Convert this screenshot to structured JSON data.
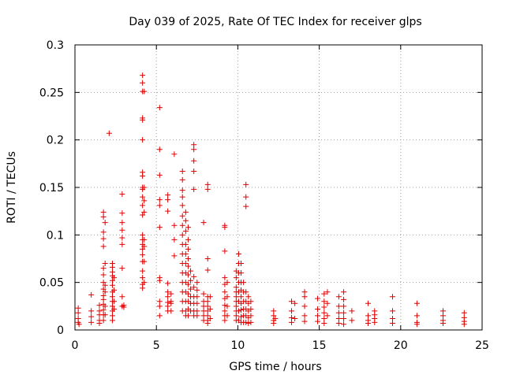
{
  "chart_data": {
    "type": "scatter",
    "title": "Day 039 of 2025, Rate Of TEC Index for receiver glps",
    "xlabel": "GPS time / hours",
    "ylabel": "ROTI / TECUs",
    "xlim": [
      0,
      25
    ],
    "ylim": [
      0,
      0.3
    ],
    "x_ticks": [
      0,
      5,
      10,
      15,
      20,
      25
    ],
    "x_tick_labels": [
      "0",
      "5",
      "10",
      "15",
      "20",
      "25"
    ],
    "y_ticks": [
      0,
      0.05,
      0.1,
      0.15,
      0.2,
      0.25,
      0.3
    ],
    "y_tick_labels": [
      "0",
      "0.05",
      "0.1",
      "0.15",
      "0.2",
      "0.25",
      "0.3"
    ],
    "grid": true,
    "marker": "+",
    "series_color": "#e00000",
    "points": [
      [
        0.2,
        0.023
      ],
      [
        0.2,
        0.018
      ],
      [
        0.2,
        0.012
      ],
      [
        0.2,
        0.008
      ],
      [
        0.25,
        0.006
      ],
      [
        1.0,
        0.037
      ],
      [
        1.0,
        0.02
      ],
      [
        1.0,
        0.014
      ],
      [
        1.0,
        0.008
      ],
      [
        1.5,
        0.026
      ],
      [
        1.5,
        0.02
      ],
      [
        1.5,
        0.016
      ],
      [
        1.5,
        0.01
      ],
      [
        1.5,
        0.007
      ],
      [
        1.75,
        0.124
      ],
      [
        1.75,
        0.119
      ],
      [
        1.75,
        0.103
      ],
      [
        1.75,
        0.096
      ],
      [
        1.75,
        0.088
      ],
      [
        1.75,
        0.065
      ],
      [
        1.75,
        0.058
      ],
      [
        1.75,
        0.05
      ],
      [
        1.75,
        0.043
      ],
      [
        1.75,
        0.036
      ],
      [
        1.75,
        0.032
      ],
      [
        1.75,
        0.027
      ],
      [
        1.75,
        0.021
      ],
      [
        1.75,
        0.016
      ],
      [
        1.75,
        0.01
      ],
      [
        1.85,
        0.113
      ],
      [
        1.85,
        0.07
      ],
      [
        1.85,
        0.047
      ],
      [
        1.85,
        0.04
      ],
      [
        1.85,
        0.025
      ],
      [
        1.85,
        0.016
      ],
      [
        2.1,
        0.207
      ],
      [
        2.3,
        0.07
      ],
      [
        2.3,
        0.066
      ],
      [
        2.3,
        0.061
      ],
      [
        2.3,
        0.057
      ],
      [
        2.3,
        0.052
      ],
      [
        2.3,
        0.047
      ],
      [
        2.3,
        0.04
      ],
      [
        2.3,
        0.035
      ],
      [
        2.3,
        0.03
      ],
      [
        2.3,
        0.025
      ],
      [
        2.3,
        0.02
      ],
      [
        2.3,
        0.015
      ],
      [
        2.3,
        0.01
      ],
      [
        2.4,
        0.055
      ],
      [
        2.4,
        0.042
      ],
      [
        2.4,
        0.03
      ],
      [
        2.4,
        0.022
      ],
      [
        2.9,
        0.143
      ],
      [
        2.9,
        0.123
      ],
      [
        2.9,
        0.113
      ],
      [
        2.9,
        0.105
      ],
      [
        2.9,
        0.097
      ],
      [
        2.9,
        0.09
      ],
      [
        2.9,
        0.065
      ],
      [
        2.9,
        0.035
      ],
      [
        2.9,
        0.025
      ],
      [
        3.0,
        0.026
      ],
      [
        3.0,
        0.024
      ],
      [
        4.15,
        0.268
      ],
      [
        4.15,
        0.26
      ],
      [
        4.15,
        0.251
      ],
      [
        4.15,
        0.223
      ],
      [
        4.15,
        0.221
      ],
      [
        4.15,
        0.2
      ],
      [
        4.15,
        0.166
      ],
      [
        4.15,
        0.162
      ],
      [
        4.15,
        0.15
      ],
      [
        4.15,
        0.148
      ],
      [
        4.15,
        0.14
      ],
      [
        4.15,
        0.131
      ],
      [
        4.15,
        0.121
      ],
      [
        4.15,
        0.1
      ],
      [
        4.15,
        0.095
      ],
      [
        4.15,
        0.09
      ],
      [
        4.15,
        0.085
      ],
      [
        4.15,
        0.079
      ],
      [
        4.15,
        0.072
      ],
      [
        4.15,
        0.062
      ],
      [
        4.15,
        0.055
      ],
      [
        4.15,
        0.048
      ],
      [
        4.15,
        0.044
      ],
      [
        4.25,
        0.251
      ],
      [
        4.25,
        0.15
      ],
      [
        4.25,
        0.136
      ],
      [
        4.25,
        0.124
      ],
      [
        4.25,
        0.095
      ],
      [
        4.25,
        0.088
      ],
      [
        4.25,
        0.072
      ],
      [
        4.25,
        0.05
      ],
      [
        5.2,
        0.234
      ],
      [
        5.2,
        0.19
      ],
      [
        5.2,
        0.163
      ],
      [
        5.2,
        0.137
      ],
      [
        5.2,
        0.131
      ],
      [
        5.2,
        0.108
      ],
      [
        5.2,
        0.055
      ],
      [
        5.2,
        0.052
      ],
      [
        5.2,
        0.03
      ],
      [
        5.2,
        0.025
      ],
      [
        5.2,
        0.015
      ],
      [
        5.7,
        0.142
      ],
      [
        5.7,
        0.137
      ],
      [
        5.7,
        0.125
      ],
      [
        5.7,
        0.049
      ],
      [
        5.7,
        0.04
      ],
      [
        5.7,
        0.035
      ],
      [
        5.7,
        0.029
      ],
      [
        5.7,
        0.025
      ],
      [
        5.7,
        0.02
      ],
      [
        5.9,
        0.038
      ],
      [
        5.9,
        0.03
      ],
      [
        5.9,
        0.028
      ],
      [
        5.9,
        0.02
      ],
      [
        6.1,
        0.185
      ],
      [
        6.1,
        0.11
      ],
      [
        6.1,
        0.095
      ],
      [
        6.1,
        0.078
      ],
      [
        6.6,
        0.167
      ],
      [
        6.6,
        0.158
      ],
      [
        6.6,
        0.147
      ],
      [
        6.6,
        0.14
      ],
      [
        6.6,
        0.131
      ],
      [
        6.6,
        0.12
      ],
      [
        6.6,
        0.11
      ],
      [
        6.6,
        0.1
      ],
      [
        6.6,
        0.09
      ],
      [
        6.6,
        0.08
      ],
      [
        6.6,
        0.07
      ],
      [
        6.6,
        0.06
      ],
      [
        6.6,
        0.05
      ],
      [
        6.6,
        0.04
      ],
      [
        6.6,
        0.03
      ],
      [
        6.6,
        0.02
      ],
      [
        6.8,
        0.124
      ],
      [
        6.8,
        0.115
      ],
      [
        6.8,
        0.104
      ],
      [
        6.8,
        0.09
      ],
      [
        6.8,
        0.08
      ],
      [
        6.8,
        0.07
      ],
      [
        6.8,
        0.06
      ],
      [
        6.8,
        0.05
      ],
      [
        6.8,
        0.04
      ],
      [
        6.8,
        0.03
      ],
      [
        6.8,
        0.02
      ],
      [
        6.8,
        0.015
      ],
      [
        6.95,
        0.108
      ],
      [
        6.95,
        0.095
      ],
      [
        6.95,
        0.085
      ],
      [
        6.95,
        0.075
      ],
      [
        6.95,
        0.067
      ],
      [
        6.95,
        0.058
      ],
      [
        6.95,
        0.048
      ],
      [
        6.95,
        0.038
      ],
      [
        6.95,
        0.03
      ],
      [
        6.95,
        0.022
      ],
      [
        6.95,
        0.015
      ],
      [
        7.1,
        0.062
      ],
      [
        7.1,
        0.052
      ],
      [
        7.1,
        0.043
      ],
      [
        7.1,
        0.035
      ],
      [
        7.1,
        0.028
      ],
      [
        7.1,
        0.02
      ],
      [
        7.3,
        0.195
      ],
      [
        7.3,
        0.19
      ],
      [
        7.3,
        0.178
      ],
      [
        7.3,
        0.167
      ],
      [
        7.3,
        0.148
      ],
      [
        7.3,
        0.056
      ],
      [
        7.3,
        0.045
      ],
      [
        7.3,
        0.035
      ],
      [
        7.3,
        0.028
      ],
      [
        7.3,
        0.02
      ],
      [
        7.3,
        0.015
      ],
      [
        7.5,
        0.05
      ],
      [
        7.5,
        0.042
      ],
      [
        7.5,
        0.035
      ],
      [
        7.5,
        0.028
      ],
      [
        7.5,
        0.02
      ],
      [
        7.5,
        0.015
      ],
      [
        7.9,
        0.113
      ],
      [
        7.9,
        0.038
      ],
      [
        7.9,
        0.03
      ],
      [
        7.9,
        0.025
      ],
      [
        7.9,
        0.02
      ],
      [
        7.9,
        0.015
      ],
      [
        7.9,
        0.01
      ],
      [
        8.15,
        0.153
      ],
      [
        8.15,
        0.148
      ],
      [
        8.15,
        0.075
      ],
      [
        8.15,
        0.063
      ],
      [
        8.15,
        0.035
      ],
      [
        8.15,
        0.03
      ],
      [
        8.15,
        0.025
      ],
      [
        8.15,
        0.02
      ],
      [
        8.15,
        0.015
      ],
      [
        8.15,
        0.01
      ],
      [
        8.15,
        0.007
      ],
      [
        8.3,
        0.035
      ],
      [
        8.3,
        0.022
      ],
      [
        8.3,
        0.012
      ],
      [
        9.2,
        0.11
      ],
      [
        9.2,
        0.108
      ],
      [
        9.2,
        0.083
      ],
      [
        9.2,
        0.055
      ],
      [
        9.2,
        0.048
      ],
      [
        9.2,
        0.04
      ],
      [
        9.2,
        0.033
      ],
      [
        9.2,
        0.026
      ],
      [
        9.2,
        0.02
      ],
      [
        9.2,
        0.015
      ],
      [
        9.2,
        0.01
      ],
      [
        9.35,
        0.05
      ],
      [
        9.35,
        0.035
      ],
      [
        9.35,
        0.025
      ],
      [
        9.35,
        0.015
      ],
      [
        9.9,
        0.062
      ],
      [
        9.9,
        0.055
      ],
      [
        9.9,
        0.045
      ],
      [
        9.9,
        0.04
      ],
      [
        9.9,
        0.035
      ],
      [
        9.9,
        0.03
      ],
      [
        9.9,
        0.025
      ],
      [
        9.9,
        0.02
      ],
      [
        9.9,
        0.015
      ],
      [
        9.9,
        0.01
      ],
      [
        10.05,
        0.08
      ],
      [
        10.05,
        0.07
      ],
      [
        10.05,
        0.06
      ],
      [
        10.05,
        0.05
      ],
      [
        10.05,
        0.04
      ],
      [
        10.05,
        0.03
      ],
      [
        10.05,
        0.02
      ],
      [
        10.05,
        0.01
      ],
      [
        10.2,
        0.07
      ],
      [
        10.2,
        0.06
      ],
      [
        10.2,
        0.05
      ],
      [
        10.2,
        0.042
      ],
      [
        10.2,
        0.035
      ],
      [
        10.2,
        0.028
      ],
      [
        10.2,
        0.021
      ],
      [
        10.2,
        0.014
      ],
      [
        10.2,
        0.008
      ],
      [
        10.35,
        0.05
      ],
      [
        10.35,
        0.04
      ],
      [
        10.35,
        0.03
      ],
      [
        10.35,
        0.022
      ],
      [
        10.35,
        0.015
      ],
      [
        10.35,
        0.008
      ],
      [
        10.5,
        0.153
      ],
      [
        10.5,
        0.14
      ],
      [
        10.5,
        0.13
      ],
      [
        10.5,
        0.04
      ],
      [
        10.5,
        0.03
      ],
      [
        10.5,
        0.022
      ],
      [
        10.5,
        0.015
      ],
      [
        10.5,
        0.008
      ],
      [
        10.65,
        0.035
      ],
      [
        10.65,
        0.028
      ],
      [
        10.65,
        0.02
      ],
      [
        10.65,
        0.013
      ],
      [
        10.65,
        0.007
      ],
      [
        10.8,
        0.03
      ],
      [
        10.8,
        0.022
      ],
      [
        10.8,
        0.015
      ],
      [
        10.8,
        0.008
      ],
      [
        12.2,
        0.02
      ],
      [
        12.2,
        0.015
      ],
      [
        12.2,
        0.01
      ],
      [
        12.2,
        0.007
      ],
      [
        12.3,
        0.012
      ],
      [
        13.3,
        0.03
      ],
      [
        13.3,
        0.02
      ],
      [
        13.3,
        0.013
      ],
      [
        13.3,
        0.008
      ],
      [
        13.5,
        0.028
      ],
      [
        13.5,
        0.012
      ],
      [
        14.1,
        0.04
      ],
      [
        14.1,
        0.035
      ],
      [
        14.1,
        0.025
      ],
      [
        14.1,
        0.015
      ],
      [
        14.1,
        0.009
      ],
      [
        14.9,
        0.033
      ],
      [
        14.9,
        0.022
      ],
      [
        14.9,
        0.015
      ],
      [
        14.9,
        0.009
      ],
      [
        15.3,
        0.038
      ],
      [
        15.3,
        0.03
      ],
      [
        15.3,
        0.024
      ],
      [
        15.3,
        0.018
      ],
      [
        15.3,
        0.012
      ],
      [
        15.3,
        0.007
      ],
      [
        15.5,
        0.04
      ],
      [
        15.5,
        0.028
      ],
      [
        15.5,
        0.015
      ],
      [
        16.2,
        0.035
      ],
      [
        16.2,
        0.025
      ],
      [
        16.2,
        0.018
      ],
      [
        16.2,
        0.012
      ],
      [
        16.2,
        0.007
      ],
      [
        16.5,
        0.04
      ],
      [
        16.5,
        0.032
      ],
      [
        16.5,
        0.025
      ],
      [
        16.5,
        0.018
      ],
      [
        16.5,
        0.012
      ],
      [
        16.5,
        0.006
      ],
      [
        17.0,
        0.02
      ],
      [
        17.0,
        0.01
      ],
      [
        18.0,
        0.028
      ],
      [
        18.0,
        0.015
      ],
      [
        18.0,
        0.01
      ],
      [
        18.0,
        0.007
      ],
      [
        18.4,
        0.02
      ],
      [
        18.4,
        0.016
      ],
      [
        18.4,
        0.012
      ],
      [
        18.4,
        0.008
      ],
      [
        19.5,
        0.035
      ],
      [
        19.5,
        0.02
      ],
      [
        19.5,
        0.012
      ],
      [
        19.5,
        0.007
      ],
      [
        21.0,
        0.028
      ],
      [
        21.0,
        0.015
      ],
      [
        21.0,
        0.008
      ],
      [
        21.0,
        0.006
      ],
      [
        22.6,
        0.02
      ],
      [
        22.6,
        0.015
      ],
      [
        22.6,
        0.01
      ],
      [
        22.6,
        0.007
      ],
      [
        23.9,
        0.018
      ],
      [
        23.9,
        0.013
      ],
      [
        23.9,
        0.009
      ],
      [
        23.9,
        0.006
      ]
    ]
  }
}
